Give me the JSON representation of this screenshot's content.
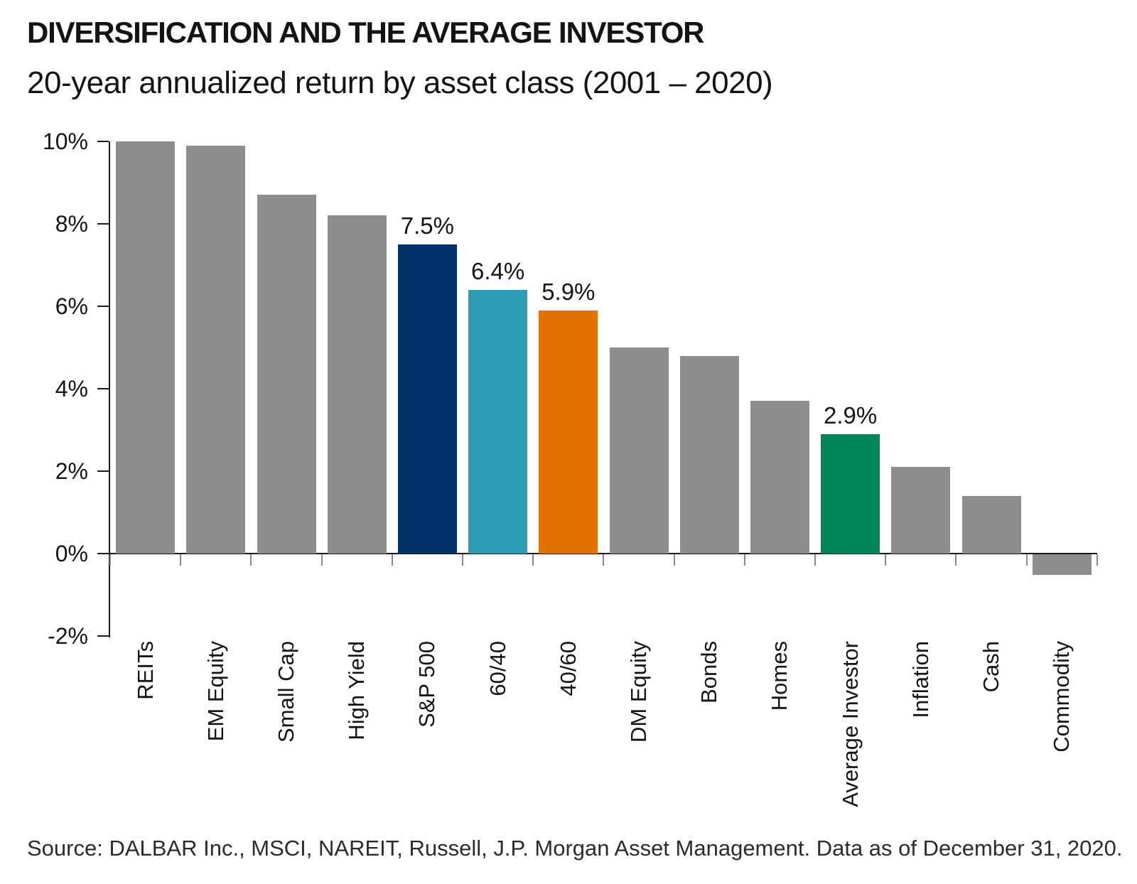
{
  "chart_data": {
    "type": "bar",
    "title": "DIVERSIFICATION AND THE AVERAGE INVESTOR",
    "subtitle": "20-year annualized return by asset class (2001 – 2020)",
    "xlabel": "",
    "ylabel": "",
    "ylim": [
      -2,
      10
    ],
    "ytick_values": [
      10,
      8,
      6,
      4,
      2,
      0,
      -2
    ],
    "ytick_labels": [
      "10%",
      "8%",
      "6%",
      "4%",
      "2%",
      "0%",
      "-2%"
    ],
    "grid": false,
    "legend": null,
    "categories": [
      "REITs",
      "EM Equity",
      "Small Cap",
      "High Yield",
      "S&P 500",
      "60/40",
      "40/60",
      "DM Equity",
      "Bonds",
      "Homes",
      "Average Investor",
      "Inflation",
      "Cash",
      "Commodity"
    ],
    "values": [
      10.0,
      9.9,
      8.7,
      8.2,
      7.5,
      6.4,
      5.9,
      5.0,
      4.8,
      3.7,
      2.9,
      2.1,
      1.4,
      -0.5
    ],
    "bar_colors": [
      "#8b8d8e",
      "#8b8d8e",
      "#8b8d8e",
      "#8b8d8e",
      "#003169",
      "#2e9cb5",
      "#e17200",
      "#8b8d8e",
      "#8b8d8e",
      "#8b8d8e",
      "#008557",
      "#8b8d8e",
      "#8b8d8e",
      "#8b8d8e"
    ],
    "bar_labels": [
      "",
      "",
      "",
      "",
      "7.5%",
      "6.4%",
      "5.9%",
      "",
      "",
      "",
      "2.9%",
      "",
      "",
      ""
    ],
    "colors": {
      "default_bar": "#8b8d8e",
      "highlight_navy": "#003169",
      "highlight_teal": "#2e9cb5",
      "highlight_orange": "#e17200",
      "highlight_green": "#008557",
      "axis": "#1a1a1a",
      "text": "#141414"
    },
    "source_note": "Source: DALBAR Inc., MSCI, NAREIT, Russell, J.P. Morgan Asset Management. Data as of December 31, 2020."
  }
}
